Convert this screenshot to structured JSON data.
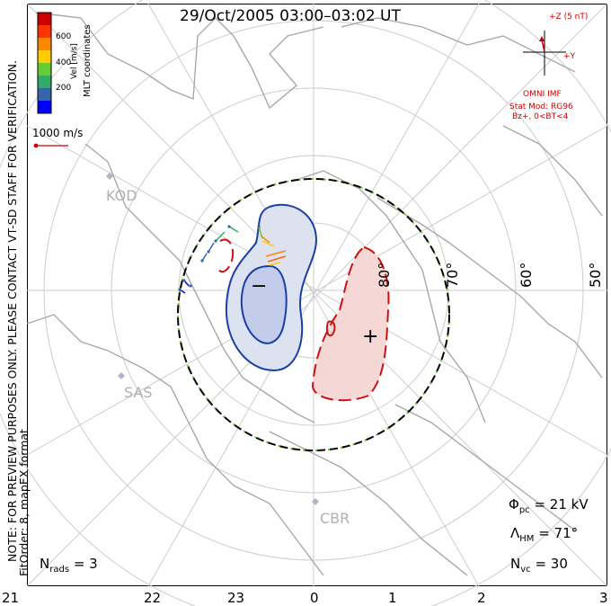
{
  "title": "29/Oct/2005 03:00–03:02 UT",
  "color_scale": {
    "label": "Vel [m/s]",
    "ticks": [
      "600",
      "400",
      "200"
    ],
    "colors": [
      "#0000ff",
      "#3366aa",
      "#33aa66",
      "#66cc33",
      "#ffcc00",
      "#ff8800",
      "#ff3300",
      "#cc0000"
    ]
  },
  "coordinates_label": "MLT coordinates",
  "reference_vector_label": "1000 m/s",
  "verification_note": "NOTE: FOR PREVIEW PURPOSES ONLY. PLEASE CONTACT VT-SD STAFF FOR VERIFICATION.",
  "fit_note": "FitOrder: 8, mapEX format",
  "imf": {
    "z_label": "+Z (5 nT)",
    "y_label": "+Y",
    "source": "OMNI IMF",
    "model": "Stat Mod: RG96",
    "condition": "Bz+, 0<BT<4"
  },
  "stations": [
    "KOD",
    "SAS",
    "CBR"
  ],
  "latitude_labels": [
    "80°",
    "70°",
    "60°",
    "50°"
  ],
  "mlt_labels": [
    "21",
    "22",
    "23",
    "0",
    "1",
    "2",
    "3"
  ],
  "stats": {
    "phi_symbol": "Φ",
    "phi_sub": "pc",
    "phi_value": "= 21 kV",
    "lambda_symbol": "Λ",
    "lambda_sub": "HM",
    "lambda_value": "= 71°",
    "nvc_symbol": "N",
    "nvc_sub": "vc",
    "nvc_value": "= 30",
    "nrads_symbol": "N",
    "nrads_sub": "rads",
    "nrads_value": "= 3"
  },
  "cell_markers": {
    "negative": "−",
    "positive": "+"
  }
}
